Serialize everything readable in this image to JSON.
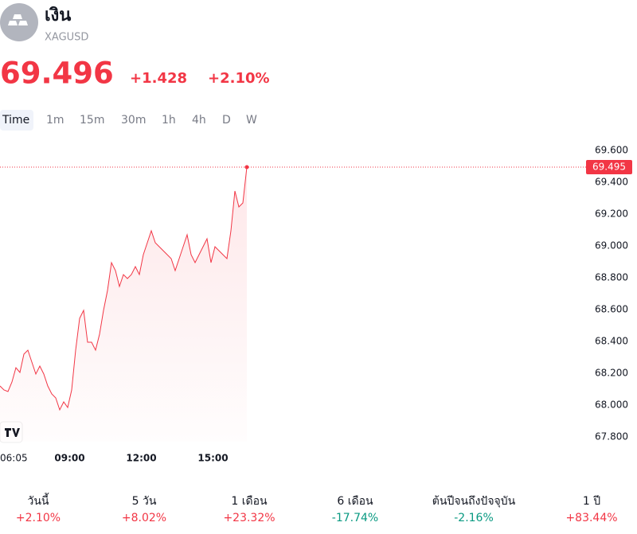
{
  "header": {
    "title": "เงิน",
    "symbol": "XAGUSD",
    "price": "69.496",
    "change": "+1.428",
    "change_percent": "+2.10%"
  },
  "timeframes": [
    "Time",
    "1m",
    "15m",
    "30m",
    "1h",
    "4h",
    "D",
    "W"
  ],
  "chart_data": {
    "type": "line",
    "color": "#f23645",
    "x": [
      "06:05",
      "06:15",
      "06:25",
      "06:35",
      "06:45",
      "06:55",
      "07:05",
      "07:15",
      "07:25",
      "07:35",
      "07:45",
      "07:55",
      "08:05",
      "08:15",
      "08:25",
      "08:35",
      "08:45",
      "08:55",
      "09:05",
      "09:15",
      "09:25",
      "09:35",
      "09:45",
      "09:55",
      "10:05",
      "10:15",
      "10:25",
      "10:35",
      "10:45",
      "10:55",
      "11:05",
      "11:15",
      "11:25",
      "11:35",
      "11:45",
      "11:55",
      "12:05",
      "12:15",
      "12:25",
      "12:35",
      "12:45",
      "12:55",
      "13:05",
      "13:15",
      "13:25",
      "13:35",
      "13:45",
      "13:55",
      "14:05",
      "14:15",
      "14:25",
      "14:35",
      "14:45",
      "14:55",
      "15:05",
      "15:15",
      "15:25",
      "15:35",
      "15:45",
      "15:55",
      "16:05",
      "16:15",
      "16:25"
    ],
    "values": [
      68.12,
      68.095,
      68.085,
      68.145,
      68.235,
      68.205,
      68.32,
      68.345,
      68.27,
      68.195,
      68.245,
      68.195,
      68.12,
      68.07,
      68.045,
      67.97,
      68.02,
      67.985,
      68.095,
      68.345,
      68.545,
      68.595,
      68.395,
      68.395,
      68.345,
      68.445,
      68.595,
      68.72,
      68.895,
      68.845,
      68.745,
      68.82,
      68.795,
      68.82,
      68.87,
      68.82,
      68.945,
      69.02,
      69.095,
      69.02,
      68.995,
      68.97,
      68.945,
      68.92,
      68.845,
      68.92,
      68.995,
      69.07,
      68.945,
      68.895,
      68.945,
      68.995,
      69.045,
      68.895,
      68.995,
      68.97,
      68.945,
      68.92,
      69.095,
      69.345,
      69.245,
      69.27,
      69.495
    ],
    "ylim": [
      67.7,
      69.7
    ],
    "yticks": [
      {
        "value": 67.8,
        "label": "67.800"
      },
      {
        "value": 68.0,
        "label": "68.000"
      },
      {
        "value": 68.2,
        "label": "68.200"
      },
      {
        "value": 68.4,
        "label": "68.400"
      },
      {
        "value": 68.6,
        "label": "68.600"
      },
      {
        "value": 68.8,
        "label": "68.800"
      },
      {
        "value": 69.0,
        "label": "69.000"
      },
      {
        "value": 69.2,
        "label": "69.200"
      },
      {
        "value": 69.4,
        "label": "69.400"
      },
      {
        "value": 69.6,
        "label": "69.600"
      }
    ],
    "xticks": [
      "06:05",
      "09:00",
      "12:00",
      "15:00"
    ],
    "last_price": 69.495
  },
  "performance": [
    {
      "label": "วันนี้",
      "value": "+2.10%"
    },
    {
      "label": "5 วัน",
      "value": "+8.02%"
    },
    {
      "label": "1 เดือน",
      "value": "+23.32%"
    },
    {
      "label": "6 เดือน",
      "value": "-17.74%"
    },
    {
      "label": "ต้นปีจนถึงปัจจุบัน",
      "value": "-2.16%"
    },
    {
      "label": "1 ปี",
      "value": "+83.44%"
    }
  ]
}
